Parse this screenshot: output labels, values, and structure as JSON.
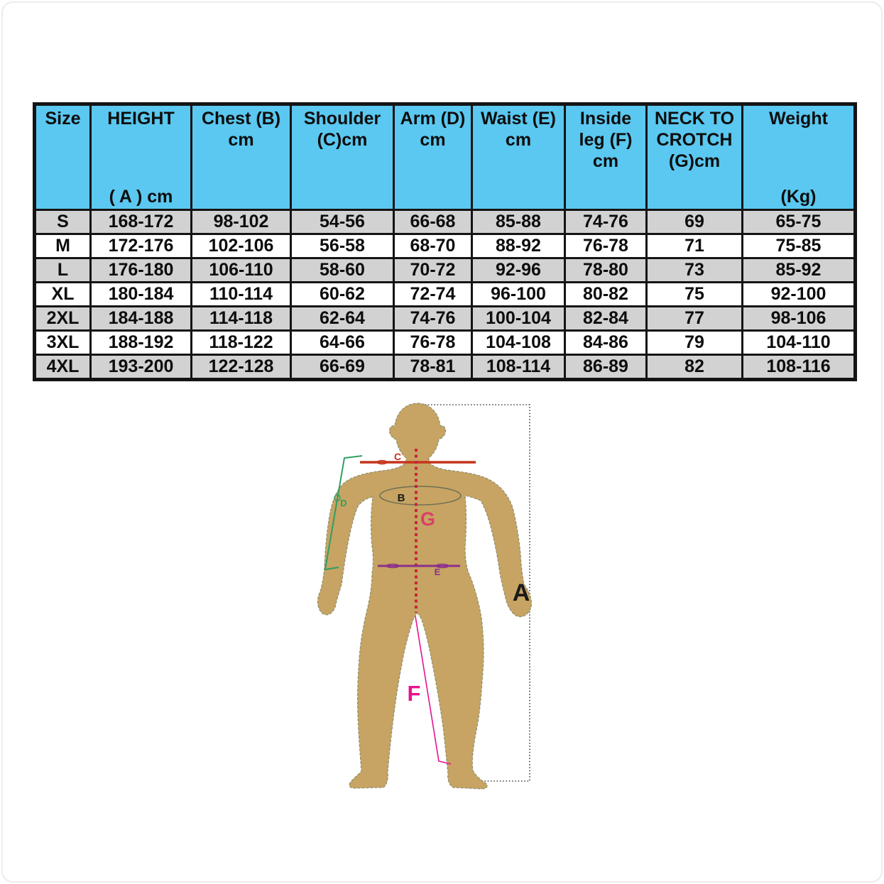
{
  "size_chart": {
    "header": {
      "background": "#5ac8f0",
      "columns": [
        {
          "id": "size",
          "top": "Size",
          "bottom": ""
        },
        {
          "id": "height",
          "top": "HEIGHT",
          "bottom": "( A ) cm"
        },
        {
          "id": "chest",
          "top": "Chest (B)\ncm",
          "bottom": ""
        },
        {
          "id": "shoulder",
          "top": "Shoulder\n(C)cm",
          "bottom": ""
        },
        {
          "id": "arm",
          "top": "Arm (D)\ncm",
          "bottom": ""
        },
        {
          "id": "waist",
          "top": "Waist (E)\ncm",
          "bottom": ""
        },
        {
          "id": "inside_leg",
          "top": "Inside\nleg (F)\ncm",
          "bottom": ""
        },
        {
          "id": "neck_to_crotch",
          "top": "NECK TO\nCROTCH\n(G)cm",
          "bottom": ""
        },
        {
          "id": "weight",
          "top": "Weight",
          "bottom": "(Kg)"
        }
      ]
    },
    "rows": [
      [
        "S",
        "168-172",
        "98-102",
        "54-56",
        "66-68",
        "85-88",
        "74-76",
        "69",
        "65-75"
      ],
      [
        "M",
        "172-176",
        "102-106",
        "56-58",
        "68-70",
        "88-92",
        "76-78",
        "71",
        "75-85"
      ],
      [
        "L",
        "176-180",
        "106-110",
        "58-60",
        "70-72",
        "92-96",
        "78-80",
        "73",
        "85-92"
      ],
      [
        "XL",
        "180-184",
        "110-114",
        "60-62",
        "72-74",
        "96-100",
        "80-82",
        "75",
        "92-100"
      ],
      [
        "2XL",
        "184-188",
        "114-118",
        "62-64",
        "74-76",
        "100-104",
        "82-84",
        "77",
        "98-106"
      ],
      [
        "3XL",
        "188-192",
        "118-122",
        "64-66",
        "76-78",
        "104-108",
        "84-86",
        "79",
        "104-110"
      ],
      [
        "4XL",
        "193-200",
        "122-128",
        "66-69",
        "78-81",
        "108-114",
        "86-89",
        "82",
        "108-116"
      ]
    ],
    "row_stripe_color": "#d2d2d2",
    "border_color": "#141414"
  },
  "diagram": {
    "labels": {
      "a": "A",
      "b": "B",
      "c": "C",
      "d": "D",
      "e": "E",
      "f": "F",
      "g": "G"
    },
    "colors": {
      "body": "#c7a463",
      "body_outline": "#8e8e6e",
      "a_line": "#3a3a3a",
      "a_label": "#1a1a1a",
      "b_line": "#6e6e55",
      "b_label": "#1a1a1a",
      "c_line": "#c5341c",
      "d_line": "#2e9e62",
      "e_line": "#8b2f8b",
      "f_line": "#e5138e",
      "g_dots": "#c8243c",
      "g_label": "#d84066"
    }
  }
}
